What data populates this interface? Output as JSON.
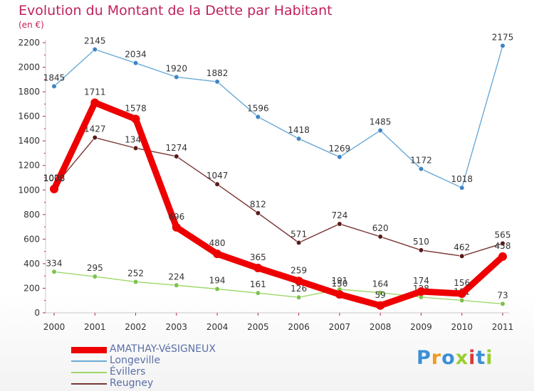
{
  "title": "Evolution du Montant de la Dette par Habitant",
  "subtitle": "(en €)",
  "logo": {
    "text": "Proxiti",
    "colors": [
      "#3b8fd6",
      "#f29b1d",
      "#3b8fd6",
      "#9acd32",
      "#d63b3b",
      "#3b8fd6",
      "#9acd32"
    ]
  },
  "chart_data": {
    "type": "line",
    "title": "Evolution du Montant de la Dette par Habitant",
    "subtitle": "(en €)",
    "x": [
      "2000",
      "2001",
      "2002",
      "2003",
      "2004",
      "2005",
      "2006",
      "2007",
      "2008",
      "2009",
      "2010",
      "2011"
    ],
    "ylim": [
      0,
      2200
    ],
    "yticks": [
      0,
      200,
      400,
      600,
      800,
      1000,
      1200,
      1400,
      1600,
      1800,
      2000,
      2200
    ],
    "grid": false,
    "legend": "bottom-left",
    "series": [
      {
        "name": "Longeville",
        "color": "#6aaad6",
        "marker": "#3d84c6",
        "style": "thin",
        "values": [
          1845,
          2145,
          2034,
          1920,
          1882,
          1596,
          1418,
          1269,
          1485,
          1172,
          1018,
          2175
        ],
        "labels": [
          "1845",
          "2145",
          "2034",
          "1920",
          "1882",
          "1596",
          "1418",
          "1269",
          "1485",
          "1172",
          "1018",
          "2175"
        ]
      },
      {
        "name": "Reugney",
        "color": "#7a3535",
        "marker": "#5a1a1a",
        "style": "thin",
        "values": [
          1028,
          1427,
          1341,
          1274,
          1047,
          812,
          571,
          724,
          620,
          510,
          462,
          565
        ],
        "labels": [
          "1028",
          "1427",
          "1341",
          "1274",
          "1047",
          "812",
          "571",
          "724",
          "620",
          "510",
          "462",
          "565"
        ]
      },
      {
        "name": "Évillers",
        "color": "#9ed86a",
        "marker": "#7cc24c",
        "style": "thin",
        "values": [
          334,
          295,
          252,
          224,
          194,
          161,
          126,
          191,
          164,
          128,
          101,
          73
        ],
        "labels": [
          "334",
          "295",
          "252",
          "224",
          "194",
          "161",
          "126",
          "191",
          "164",
          "128",
          "101",
          "73"
        ]
      },
      {
        "name": "AMATHAY-VéSIGNEUX",
        "color": "#ee0000",
        "marker": "#ee0000",
        "style": "thick",
        "values": [
          1008,
          1711,
          1578,
          696,
          480,
          365,
          259,
          150,
          59,
          174,
          156,
          458
        ],
        "labels": [
          "1008",
          "1711",
          "1578",
          "696",
          "480",
          "365",
          "259",
          "150",
          "59",
          "174",
          "156",
          "458"
        ]
      }
    ],
    "legend_order": [
      "AMATHAY-VéSIGNEUX",
      "Longeville",
      "Évillers",
      "Reugney"
    ]
  }
}
